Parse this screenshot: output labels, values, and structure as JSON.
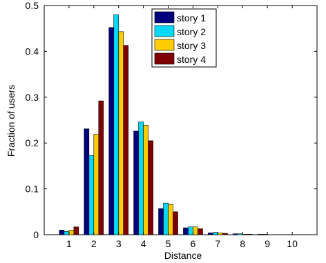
{
  "chart_data": {
    "type": "bar",
    "categories": [
      "1",
      "2",
      "3",
      "4",
      "5",
      "6",
      "7",
      "8",
      "9",
      "10"
    ],
    "series": [
      {
        "name": "story 1",
        "color": "#00007f",
        "values": [
          0.01,
          0.231,
          0.452,
          0.226,
          0.057,
          0.015,
          0.004,
          0.002,
          0.001,
          0.0
        ]
      },
      {
        "name": "story 2",
        "color": "#00d8f8",
        "values": [
          0.007,
          0.173,
          0.48,
          0.246,
          0.069,
          0.017,
          0.005,
          0.002,
          0.001,
          0.0
        ]
      },
      {
        "name": "story 3",
        "color": "#ffcc00",
        "values": [
          0.01,
          0.219,
          0.443,
          0.239,
          0.066,
          0.017,
          0.004,
          0.001,
          0.0,
          0.0
        ]
      },
      {
        "name": "story 4",
        "color": "#7f0000",
        "values": [
          0.017,
          0.292,
          0.413,
          0.205,
          0.05,
          0.013,
          0.003,
          0.001,
          0.0,
          0.0
        ]
      }
    ],
    "xlabel": "Distance",
    "ylabel": "Fraction of users",
    "ylim": [
      0,
      0.5
    ],
    "yticks": [
      "0",
      "0.1",
      "0.2",
      "0.3",
      "0.4",
      "0.5"
    ],
    "ytick_values": [
      0,
      0.1,
      0.2,
      0.3,
      0.4,
      0.5
    ],
    "xlim": [
      0,
      11
    ],
    "grid": false,
    "legend_position": "top-center"
  }
}
